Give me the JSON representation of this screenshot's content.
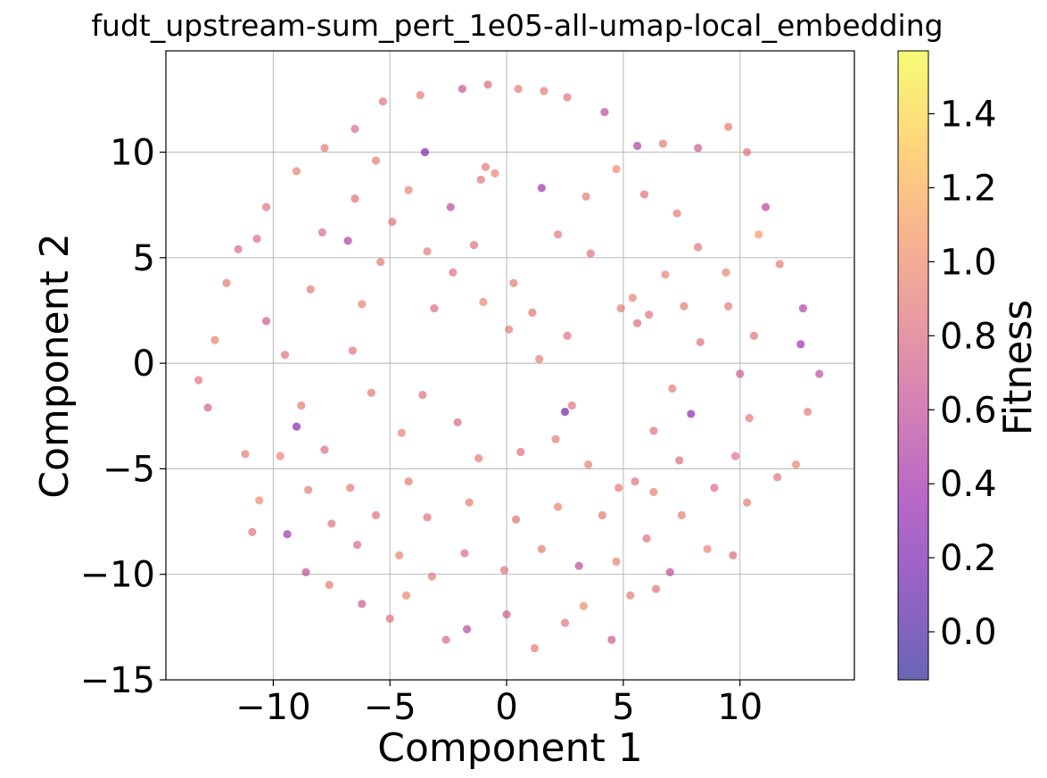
{
  "chart_data": {
    "type": "scatter",
    "title": "fudt_upstream-sum_pert_1e05-all-umap-local_embedding",
    "xlabel": "Component 1",
    "ylabel": "Component 2",
    "xlim": [
      -14.6,
      14.9
    ],
    "ylim": [
      -15,
      14.8
    ],
    "x_ticks": [
      -10,
      -5,
      0,
      5,
      10
    ],
    "x_tick_labels": [
      "−10",
      "−5",
      "0",
      "5",
      "10"
    ],
    "y_ticks": [
      -15,
      -10,
      -5,
      0,
      5,
      10
    ],
    "y_tick_labels": [
      "−15",
      "−10",
      "−5",
      "0",
      "5",
      "10"
    ],
    "grid": true,
    "colorbar": {
      "label": "Fitness",
      "colormap": "plasma",
      "range": [
        -0.13,
        1.57
      ],
      "ticks": [
        0.0,
        0.2,
        0.4,
        0.6,
        0.8,
        1.0,
        1.2,
        1.4
      ],
      "tick_labels": [
        "0.0",
        "0.2",
        "0.4",
        "0.6",
        "0.8",
        "1.0",
        "1.2",
        "1.4"
      ],
      "stops": [
        "#0d0887",
        "#5302a3",
        "#8b0aa5",
        "#b83289",
        "#db5c68",
        "#f48849",
        "#febd2a",
        "#f0f921"
      ]
    },
    "marker_alpha": 0.62,
    "points_note": "",
    "points": [
      {
        "x": -13.2,
        "y": -0.8,
        "c": 0.85
      },
      {
        "x": -12.5,
        "y": 1.1,
        "c": 0.95
      },
      {
        "x": -12.0,
        "y": 3.8,
        "c": 0.9
      },
      {
        "x": -11.5,
        "y": 5.4,
        "c": 0.8
      },
      {
        "x": -12.8,
        "y": -2.1,
        "c": 0.75
      },
      {
        "x": -11.2,
        "y": -4.3,
        "c": 0.9
      },
      {
        "x": -10.6,
        "y": -6.5,
        "c": 1.0
      },
      {
        "x": -10.9,
        "y": -8.0,
        "c": 0.85
      },
      {
        "x": -9.4,
        "y": -8.1,
        "c": 0.4
      },
      {
        "x": -8.6,
        "y": -9.9,
        "c": 0.6
      },
      {
        "x": -7.6,
        "y": -10.5,
        "c": 0.9
      },
      {
        "x": -6.2,
        "y": -11.4,
        "c": 0.7
      },
      {
        "x": -5.0,
        "y": -12.1,
        "c": 0.85
      },
      {
        "x": -4.3,
        "y": -11.0,
        "c": 0.95
      },
      {
        "x": -2.6,
        "y": -13.1,
        "c": 0.8
      },
      {
        "x": -1.7,
        "y": -12.6,
        "c": 0.55
      },
      {
        "x": 0.0,
        "y": -11.9,
        "c": 0.7
      },
      {
        "x": 1.2,
        "y": -13.5,
        "c": 0.9
      },
      {
        "x": 2.5,
        "y": -12.3,
        "c": 0.85
      },
      {
        "x": 3.3,
        "y": -11.5,
        "c": 1.0
      },
      {
        "x": 4.5,
        "y": -13.1,
        "c": 0.7
      },
      {
        "x": 5.3,
        "y": -11.0,
        "c": 0.9
      },
      {
        "x": 6.4,
        "y": -10.7,
        "c": 0.85
      },
      {
        "x": 7.0,
        "y": -9.9,
        "c": 0.6
      },
      {
        "x": 8.6,
        "y": -8.8,
        "c": 0.95
      },
      {
        "x": 9.7,
        "y": -9.1,
        "c": 0.8
      },
      {
        "x": 10.3,
        "y": -6.6,
        "c": 0.9
      },
      {
        "x": 11.6,
        "y": -5.4,
        "c": 0.85
      },
      {
        "x": 12.4,
        "y": -4.8,
        "c": 0.95
      },
      {
        "x": 12.9,
        "y": -2.3,
        "c": 0.9
      },
      {
        "x": 13.4,
        "y": -0.5,
        "c": 0.6
      },
      {
        "x": 12.6,
        "y": 0.9,
        "c": 0.4
      },
      {
        "x": 12.7,
        "y": 2.6,
        "c": 0.5
      },
      {
        "x": 11.7,
        "y": 4.7,
        "c": 0.9
      },
      {
        "x": 10.8,
        "y": 6.1,
        "c": 1.1
      },
      {
        "x": 11.1,
        "y": 7.4,
        "c": 0.55
      },
      {
        "x": 10.3,
        "y": 10.0,
        "c": 0.85
      },
      {
        "x": 9.5,
        "y": 11.2,
        "c": 0.9
      },
      {
        "x": 8.2,
        "y": 10.2,
        "c": 0.7
      },
      {
        "x": 6.7,
        "y": 10.4,
        "c": 0.9
      },
      {
        "x": 5.6,
        "y": 10.3,
        "c": 0.5
      },
      {
        "x": 4.2,
        "y": 11.9,
        "c": 0.6
      },
      {
        "x": 2.6,
        "y": 12.6,
        "c": 0.85
      },
      {
        "x": 1.6,
        "y": 12.9,
        "c": 0.9
      },
      {
        "x": 0.5,
        "y": 13.0,
        "c": 0.9
      },
      {
        "x": -0.8,
        "y": 13.2,
        "c": 0.8
      },
      {
        "x": -1.9,
        "y": 13.0,
        "c": 0.65
      },
      {
        "x": -3.7,
        "y": 12.7,
        "c": 0.9
      },
      {
        "x": -5.3,
        "y": 12.4,
        "c": 0.85
      },
      {
        "x": -6.5,
        "y": 11.1,
        "c": 0.8
      },
      {
        "x": -7.8,
        "y": 10.2,
        "c": 0.9
      },
      {
        "x": -9.0,
        "y": 9.1,
        "c": 0.95
      },
      {
        "x": -10.3,
        "y": 7.4,
        "c": 0.85
      },
      {
        "x": -10.7,
        "y": 5.9,
        "c": 0.8
      },
      {
        "x": -0.9,
        "y": 9.3,
        "c": 0.9
      },
      {
        "x": -0.5,
        "y": 9.0,
        "c": 0.95
      },
      {
        "x": -1.1,
        "y": 8.7,
        "c": 0.85
      },
      {
        "x": 1.5,
        "y": 8.3,
        "c": 0.4
      },
      {
        "x": -3.5,
        "y": 10.0,
        "c": 0.2
      },
      {
        "x": -8.5,
        "y": -6.0,
        "c": 0.9
      },
      {
        "x": -7.5,
        "y": -7.6,
        "c": 0.85
      },
      {
        "x": -6.4,
        "y": -8.6,
        "c": 0.8
      },
      {
        "x": -9.7,
        "y": -4.4,
        "c": 0.95
      },
      {
        "x": -8.8,
        "y": -2.0,
        "c": 0.9
      },
      {
        "x": -9.5,
        "y": 0.4,
        "c": 0.85
      },
      {
        "x": -10.3,
        "y": 2.0,
        "c": 0.7
      },
      {
        "x": -8.4,
        "y": 3.5,
        "c": 0.9
      },
      {
        "x": -7.9,
        "y": 6.2,
        "c": 0.8
      },
      {
        "x": -6.5,
        "y": 7.8,
        "c": 0.85
      },
      {
        "x": -5.6,
        "y": 9.6,
        "c": 0.9
      },
      {
        "x": -4.2,
        "y": 8.2,
        "c": 0.95
      },
      {
        "x": -2.4,
        "y": 7.4,
        "c": 0.6
      },
      {
        "x": 3.4,
        "y": 7.9,
        "c": 0.9
      },
      {
        "x": 4.7,
        "y": 9.2,
        "c": 1.0
      },
      {
        "x": 5.9,
        "y": 8.0,
        "c": 0.85
      },
      {
        "x": 7.3,
        "y": 7.1,
        "c": 0.9
      },
      {
        "x": 8.2,
        "y": 5.5,
        "c": 0.85
      },
      {
        "x": 9.4,
        "y": 4.3,
        "c": 0.95
      },
      {
        "x": 9.5,
        "y": 2.7,
        "c": 0.9
      },
      {
        "x": 10.6,
        "y": 1.3,
        "c": 0.85
      },
      {
        "x": 10.0,
        "y": -0.5,
        "c": 0.7
      },
      {
        "x": 10.4,
        "y": -2.6,
        "c": 0.9
      },
      {
        "x": 9.8,
        "y": -4.4,
        "c": 0.85
      },
      {
        "x": 8.9,
        "y": -5.9,
        "c": 0.8
      },
      {
        "x": 7.5,
        "y": -7.2,
        "c": 0.9
      },
      {
        "x": 6.0,
        "y": -8.3,
        "c": 0.85
      },
      {
        "x": 4.7,
        "y": -9.4,
        "c": 0.95
      },
      {
        "x": 3.1,
        "y": -9.6,
        "c": 0.6
      },
      {
        "x": 1.5,
        "y": -8.8,
        "c": 0.9
      },
      {
        "x": -0.1,
        "y": -9.8,
        "c": 0.85
      },
      {
        "x": -1.8,
        "y": -9.0,
        "c": 0.8
      },
      {
        "x": -3.2,
        "y": -10.1,
        "c": 0.9
      },
      {
        "x": -4.6,
        "y": -9.1,
        "c": 0.95
      },
      {
        "x": -5.6,
        "y": -7.2,
        "c": 0.85
      },
      {
        "x": -6.7,
        "y": -5.9,
        "c": 0.9
      },
      {
        "x": -7.8,
        "y": -4.1,
        "c": 0.8
      },
      {
        "x": -5.8,
        "y": -1.4,
        "c": 0.9
      },
      {
        "x": -6.6,
        "y": 0.6,
        "c": 0.85
      },
      {
        "x": -6.2,
        "y": 2.8,
        "c": 0.95
      },
      {
        "x": -5.4,
        "y": 4.8,
        "c": 0.9
      },
      {
        "x": -6.8,
        "y": 5.8,
        "c": 0.5
      },
      {
        "x": -4.9,
        "y": 6.7,
        "c": 0.85
      },
      {
        "x": 2.2,
        "y": 6.1,
        "c": 0.9
      },
      {
        "x": 3.6,
        "y": 5.2,
        "c": 0.85
      },
      {
        "x": 6.8,
        "y": 4.2,
        "c": 0.95
      },
      {
        "x": 7.6,
        "y": 2.7,
        "c": 0.9
      },
      {
        "x": 8.3,
        "y": 1.0,
        "c": 0.85
      },
      {
        "x": 7.1,
        "y": -1.2,
        "c": 0.9
      },
      {
        "x": 6.3,
        "y": -3.2,
        "c": 0.85
      },
      {
        "x": 7.4,
        "y": -4.6,
        "c": 0.8
      },
      {
        "x": 4.1,
        "y": -7.2,
        "c": 0.9
      },
      {
        "x": 2.2,
        "y": -6.8,
        "c": 0.95
      },
      {
        "x": 0.4,
        "y": -7.4,
        "c": 0.85
      },
      {
        "x": -1.6,
        "y": -6.6,
        "c": 0.9
      },
      {
        "x": -3.4,
        "y": -7.3,
        "c": 0.85
      },
      {
        "x": -4.2,
        "y": -5.6,
        "c": 0.9
      },
      {
        "x": -4.5,
        "y": -3.3,
        "c": 0.95
      },
      {
        "x": -3.6,
        "y": -1.5,
        "c": 0.85
      },
      {
        "x": -2.1,
        "y": -2.8,
        "c": 0.8
      },
      {
        "x": -1.2,
        "y": -4.5,
        "c": 0.9
      },
      {
        "x": 0.6,
        "y": -4.2,
        "c": 0.85
      },
      {
        "x": 2.1,
        "y": -3.6,
        "c": 0.9
      },
      {
        "x": 3.5,
        "y": -4.8,
        "c": 0.95
      },
      {
        "x": 2.8,
        "y": -2.0,
        "c": 0.85
      },
      {
        "x": 1.4,
        "y": 0.2,
        "c": 0.9
      },
      {
        "x": 2.6,
        "y": 1.3,
        "c": 0.85
      },
      {
        "x": 0.1,
        "y": 1.6,
        "c": 0.9
      },
      {
        "x": -1.0,
        "y": 2.9,
        "c": 0.95
      },
      {
        "x": -2.3,
        "y": 4.3,
        "c": 0.85
      },
      {
        "x": -3.1,
        "y": 2.6,
        "c": 0.8
      },
      {
        "x": -3.4,
        "y": 5.3,
        "c": 0.9
      },
      {
        "x": -1.4,
        "y": 5.6,
        "c": 0.85
      },
      {
        "x": 0.3,
        "y": 3.8,
        "c": 0.9
      },
      {
        "x": 1.1,
        "y": 2.4,
        "c": 0.85
      },
      {
        "x": 4.9,
        "y": 2.6,
        "c": 0.9
      },
      {
        "x": 5.4,
        "y": 3.1,
        "c": 0.95
      },
      {
        "x": 6.1,
        "y": 2.3,
        "c": 0.85
      },
      {
        "x": 5.6,
        "y": 1.9,
        "c": 0.8
      },
      {
        "x": 4.8,
        "y": -5.9,
        "c": 0.9
      },
      {
        "x": 5.5,
        "y": -5.6,
        "c": 0.85
      },
      {
        "x": 6.3,
        "y": -6.1,
        "c": 0.95
      },
      {
        "x": -9.0,
        "y": -3.0,
        "c": 0.25
      },
      {
        "x": 2.5,
        "y": -2.3,
        "c": 0.15
      },
      {
        "x": 7.9,
        "y": -2.4,
        "c": 0.3
      }
    ]
  }
}
